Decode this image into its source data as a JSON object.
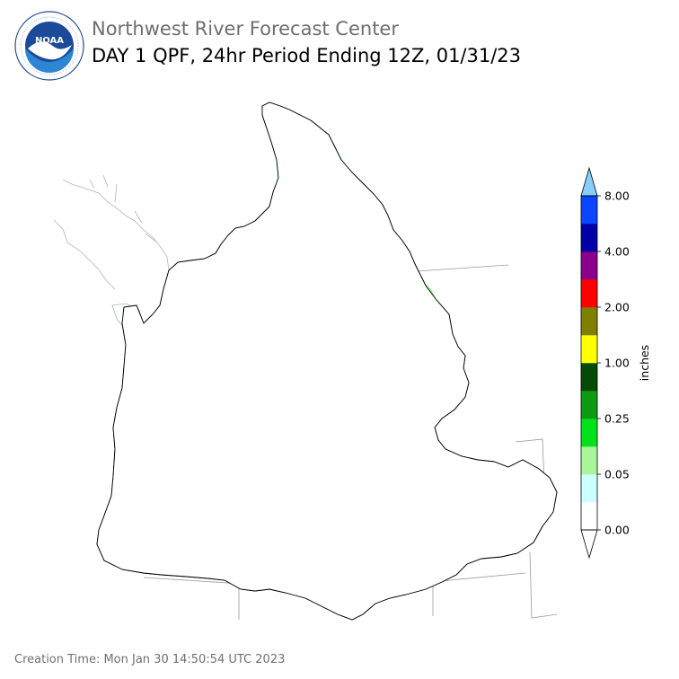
{
  "header": {
    "agency": "Northwest River Forecast Center",
    "product_title": "DAY 1 QPF, 24hr Period Ending 12Z, 01/31/23"
  },
  "logo": {
    "text": "NOAA",
    "ring_text": "NATIONAL OCEANIC AND ATMOSPHERIC ADMINISTRATION · U.S. DEPARTMENT OF COMMERCE",
    "colors": {
      "ring": "#ffffff",
      "sky": "#1b4a9a",
      "sea": "#2c86d3",
      "bird": "#ffffff"
    }
  },
  "footer": {
    "creation_time": "Creation Time: Mon Jan 30 14:50:54 UTC 2023"
  },
  "legend": {
    "unit_label": "inches",
    "tick_labels": [
      "0.00",
      "0.05",
      "0.25",
      "1.00",
      "2.00",
      "4.00",
      "8.00"
    ],
    "bins": [
      {
        "from": 0.0,
        "color": "#ffffff"
      },
      {
        "from": 0.01,
        "color": "#ccffff"
      },
      {
        "from": 0.05,
        "color": "#a9f59a"
      },
      {
        "from": 0.1,
        "color": "#00e31a"
      },
      {
        "from": 0.25,
        "color": "#0e9a12"
      },
      {
        "from": 0.5,
        "color": "#054a05"
      },
      {
        "from": 1.0,
        "color": "#ffff00"
      },
      {
        "from": 1.5,
        "color": "#7f7f00"
      },
      {
        "from": 2.0,
        "color": "#ff0000"
      },
      {
        "from": 3.0,
        "color": "#8b008b"
      },
      {
        "from": 4.0,
        "color": "#0000a8"
      },
      {
        "from": 6.0,
        "color": "#0b46ff"
      }
    ],
    "over_color": "#87cefa",
    "under_color": "#ffffff"
  },
  "map": {
    "colors": {
      "basin_outline": "#000000",
      "state_lines": "#9a9a9a",
      "coast_lines": "#b0b0b0",
      "light_precip": "#ccffff",
      "pale_green": "#a9f59a",
      "green": "#00e31a",
      "dark_green": "#0e9a12",
      "very_dark_green": "#054a05"
    }
  }
}
